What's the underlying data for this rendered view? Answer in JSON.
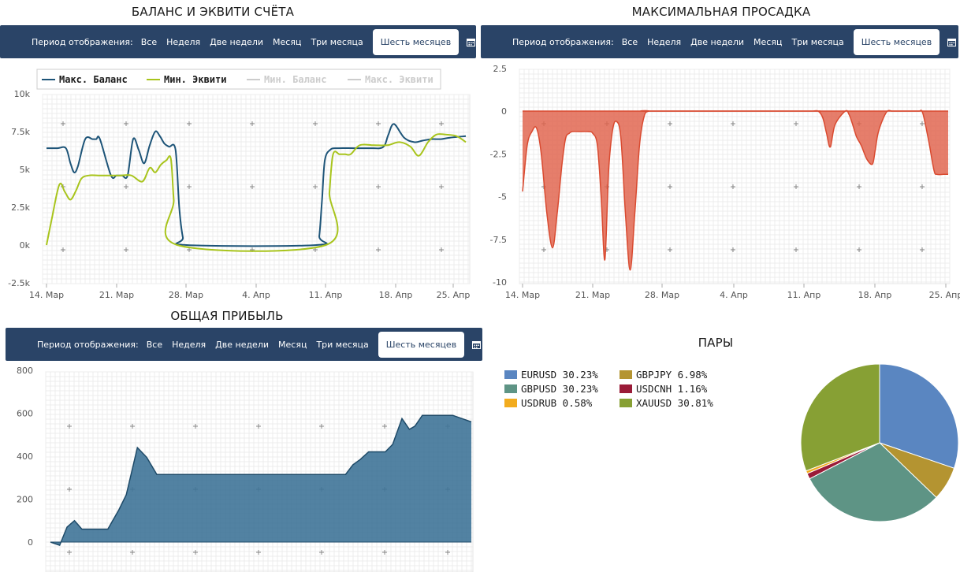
{
  "toolbar": {
    "period_label": "Период отображения:",
    "options": [
      "Все",
      "Неделя",
      "Две недели",
      "Месяц",
      "Три месяца",
      "Шесть месяцев"
    ],
    "active": "Шесть месяцев",
    "calendar_icon": "calendar-icon"
  },
  "chart_data": [
    {
      "type": "line",
      "title": "БАЛАНС И ЭКВИТИ СЧЁТА",
      "x_ticks": [
        "14. Мар",
        "21. Мар",
        "28. Мар",
        "4. Апр",
        "11. Апр",
        "18. Апр",
        "25. Апр"
      ],
      "y_ticks": [
        "-2.5k",
        "0k",
        "2.5k",
        "5k",
        "7.5k",
        "10k"
      ],
      "ylim": [
        -2500,
        10000
      ],
      "xlim": [
        0,
        45.5
      ],
      "legend": [
        {
          "name": "Макс. Баланс",
          "color": "#1d5478",
          "visible": true
        },
        {
          "name": "Мин. Эквити",
          "color": "#a8c41c",
          "visible": true
        },
        {
          "name": "Мин. Баланс",
          "color": "#cccccc",
          "visible": false
        },
        {
          "name": "Макс. Эквити",
          "color": "#cccccc",
          "visible": false
        }
      ],
      "series": [
        {
          "name": "Макс. Баланс",
          "color": "#1d5478",
          "x": [
            0,
            1.2,
            2.1,
            2.6,
            3.0,
            3.4,
            4.2,
            5.0,
            5.4,
            5.8,
            7.0,
            7.6,
            8.2,
            8.8,
            9.4,
            10.0,
            10.6,
            11.2,
            11.8,
            12.3,
            12.8,
            13.3,
            14.0,
            14.4,
            14.8,
            15.2,
            29.3,
            29.6,
            29.9,
            30.2,
            30.8,
            31.6,
            33.5,
            35.5,
            36.2,
            36.7,
            37.1,
            37.7,
            38.8,
            39.9,
            40.8,
            41.8,
            42.8,
            43.8,
            45.5
          ],
          "values": [
            6400,
            6400,
            6400,
            5400,
            4800,
            5200,
            7000,
            7000,
            7000,
            7000,
            4600,
            4600,
            4600,
            4600,
            7000,
            6300,
            5400,
            6600,
            7500,
            7200,
            6700,
            6500,
            6300,
            2500,
            500,
            0,
            0,
            600,
            3000,
            5600,
            6300,
            6400,
            6400,
            6400,
            6400,
            6600,
            7300,
            8000,
            7100,
            6800,
            6900,
            7000,
            7000,
            7100,
            7200
          ]
        },
        {
          "name": "Мин. Эквити",
          "color": "#a8c41c",
          "x": [
            0,
            0.6,
            1.4,
            2.0,
            2.6,
            3.2,
            3.8,
            4.6,
            5.6,
            6.8,
            8.0,
            9.2,
            10.4,
            11.2,
            11.8,
            12.4,
            13.0,
            13.5,
            13.8,
            14.2,
            30.3,
            30.7,
            31.1,
            31.8,
            32.4,
            33.0,
            34.0,
            35.5,
            37.0,
            38.3,
            39.5,
            40.4,
            41.4,
            42.3,
            43.3,
            44.5,
            45.5
          ],
          "values": [
            0,
            1800,
            4000,
            3500,
            3000,
            3600,
            4400,
            4600,
            4600,
            4600,
            4600,
            4600,
            4200,
            5100,
            4800,
            5300,
            5600,
            5700,
            3000,
            0,
            0,
            3500,
            6000,
            6000,
            6000,
            6000,
            6600,
            6600,
            6600,
            6800,
            6500,
            5900,
            6800,
            7300,
            7300,
            7200,
            6800
          ]
        }
      ]
    },
    {
      "type": "area",
      "title": "МАКСИМАЛЬНАЯ ПРОСАДКА",
      "x_ticks": [
        "14. Мар",
        "21. Мар",
        "28. Мар",
        "4. Апр",
        "11. Апр",
        "18. Апр",
        "25. Апр"
      ],
      "y_ticks": [
        "-10",
        "-7.5",
        "-5",
        "-2.5",
        "0",
        "2.5"
      ],
      "ylim": [
        -10,
        2.5
      ],
      "xlim": [
        0,
        45.5
      ],
      "series": [
        {
          "name": "",
          "color": "#e0614a",
          "x": [
            0,
            0.5,
            1.0,
            1.5,
            2.0,
            2.6,
            3.2,
            3.7,
            4.2,
            4.6,
            5.0,
            5.3,
            6.0,
            7.0,
            7.5,
            8.0,
            8.4,
            8.8,
            9.2,
            9.6,
            10.0,
            10.5,
            11.0,
            11.5,
            12.0,
            12.5,
            13.0,
            13.5,
            14.0,
            30.5,
            31.0,
            31.6,
            32.1,
            32.5,
            32.9,
            33.4,
            34.5,
            34.9,
            35.3,
            35.7,
            36.2,
            36.8,
            37.4,
            37.7,
            38.0,
            38.5,
            39.0,
            39.5,
            40.0,
            40.4,
            40.8,
            41.2,
            41.6,
            42.0,
            42.4,
            42.7,
            43.0,
            43.5,
            44.0,
            44.3,
            45.0,
            45.5
          ],
          "values": [
            -4.7,
            -2.0,
            -1.2,
            -1.0,
            -2.5,
            -6.0,
            -8.0,
            -6.0,
            -3.2,
            -1.6,
            -1.3,
            -1.2,
            -1.2,
            -1.2,
            -1.3,
            -2.0,
            -5.0,
            -8.7,
            -3.5,
            -1.2,
            -0.6,
            -1.5,
            -6.0,
            -9.3,
            -6.0,
            -2.0,
            -0.3,
            0,
            0,
            0,
            0,
            0,
            -0.4,
            -1.3,
            -2.1,
            -0.8,
            0,
            -0.2,
            -0.8,
            -1.5,
            -2.0,
            -2.8,
            -3.1,
            -2.3,
            -1.3,
            -0.5,
            0,
            0,
            0,
            0,
            0,
            0,
            0,
            0,
            0,
            0,
            -0.6,
            -2.0,
            -3.5,
            -3.7,
            -3.7,
            -3.7
          ]
        }
      ]
    },
    {
      "type": "area",
      "title": "ОБЩАЯ ПРИБЫЛЬ",
      "y_ticks": [
        "0",
        "200",
        "400",
        "600",
        "800"
      ],
      "ylim": [
        -140,
        800
      ],
      "xlim": [
        0,
        45.5
      ],
      "series": [
        {
          "name": "",
          "color": "#3f7498",
          "x": [
            0,
            1.0,
            1.8,
            2.6,
            3.4,
            4.8,
            6.2,
            7.4,
            8.2,
            9.4,
            10.4,
            11.5,
            12.8,
            15.5,
            22.0,
            28.0,
            31.9,
            32.7,
            33.5,
            34.4,
            35.3,
            36.2,
            37.0,
            38.0,
            38.8,
            39.4,
            40.2,
            41.0,
            42.0,
            43.5,
            45.5
          ],
          "values": [
            0,
            -15,
            70,
            100,
            60,
            60,
            60,
            150,
            220,
            440,
            395,
            315,
            315,
            315,
            315,
            315,
            315,
            360,
            385,
            420,
            420,
            420,
            455,
            575,
            525,
            540,
            590,
            590,
            590,
            590,
            560
          ]
        }
      ]
    },
    {
      "type": "pie",
      "title": "ПАРЫ",
      "slices": [
        {
          "label": "EURUSD 30.23%",
          "name": "EURUSD",
          "value": 30.23,
          "color": "#5a86c1"
        },
        {
          "label": "GBPJPY 6.98%",
          "name": "GBPJPY",
          "value": 6.98,
          "color": "#b49431"
        },
        {
          "label": "GBPUSD 30.23%",
          "name": "GBPUSD",
          "value": 30.23,
          "color": "#5e9485"
        },
        {
          "label": "USDCNH 1.16%",
          "name": "USDCNH",
          "value": 1.16,
          "color": "#9a1b38"
        },
        {
          "label": "USDRUB 0.58%",
          "name": "USDRUB",
          "value": 0.58,
          "color": "#f2ac1e"
        },
        {
          "label": "XAUUSD 30.81%",
          "name": "XAUUSD",
          "value": 30.81,
          "color": "#87a034"
        }
      ]
    }
  ]
}
